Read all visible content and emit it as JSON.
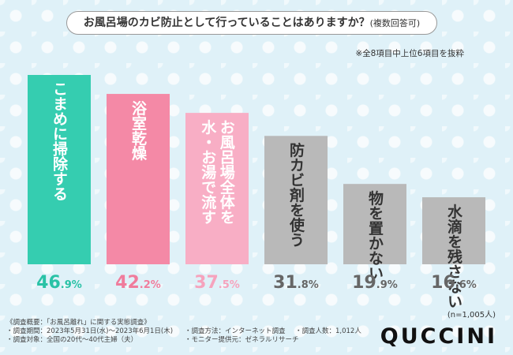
{
  "title": "お風呂場のカビ防止として行っていることはありますか？",
  "title_sub": "(複数回答可)",
  "note": "※全8項目中上位6項目を抜粋",
  "sample_note": "(n=1,005人)",
  "chart_data": {
    "type": "bar",
    "title": "お風呂場のカビ防止として行っていることはありますか？",
    "categories": [
      "こまめに掃除する",
      "浴室乾燥",
      "お風呂場全体を水・お湯で流す",
      "防カビ剤を使う",
      "物を置かない",
      "水滴を残さない"
    ],
    "label_lines": [
      [
        "こまめに掃除する"
      ],
      [
        "浴室乾燥"
      ],
      [
        "お風呂場全体を",
        "水・お湯で流す"
      ],
      [
        "防カビ剤を使う"
      ],
      [
        "物を置かない"
      ],
      [
        "水滴を残さない"
      ]
    ],
    "values": [
      46.9,
      42.2,
      37.5,
      31.8,
      19.9,
      16.6
    ],
    "value_labels": [
      {
        "int": "46",
        "dec": ".9%"
      },
      {
        "int": "42",
        "dec": ".2%"
      },
      {
        "int": "37",
        "dec": ".5%"
      },
      {
        "int": "31",
        "dec": ".8%"
      },
      {
        "int": "19",
        "dec": ".9%"
      },
      {
        "int": "16",
        "dec": ".6%"
      }
    ],
    "unit": "%",
    "ylim": [
      0,
      50
    ],
    "colors": [
      "#35cdb0",
      "#f489a6",
      "#f8aec5",
      "#b9b9b9",
      "#b9b9b9",
      "#b9b9b9"
    ],
    "value_colors": [
      "#29c2a6",
      "#f07c9c",
      "#f6a3bd",
      "#666666",
      "#666666",
      "#666666"
    ]
  },
  "footer": {
    "c1": [
      "《調査概要：「お風呂離れ」に関する実態調査》",
      "・調査期間：2023年5月31日(水)～2023年6月1日(木)",
      "・調査対象：全国の20代～40代主婦（夫）"
    ],
    "c2": [
      "",
      "・調査方法：インターネット調査",
      "・モニター提供元：ゼネラルリサーチ"
    ],
    "c3": [
      "",
      "・調査人数：1,012人",
      ""
    ]
  },
  "brand": "QUCCINI"
}
